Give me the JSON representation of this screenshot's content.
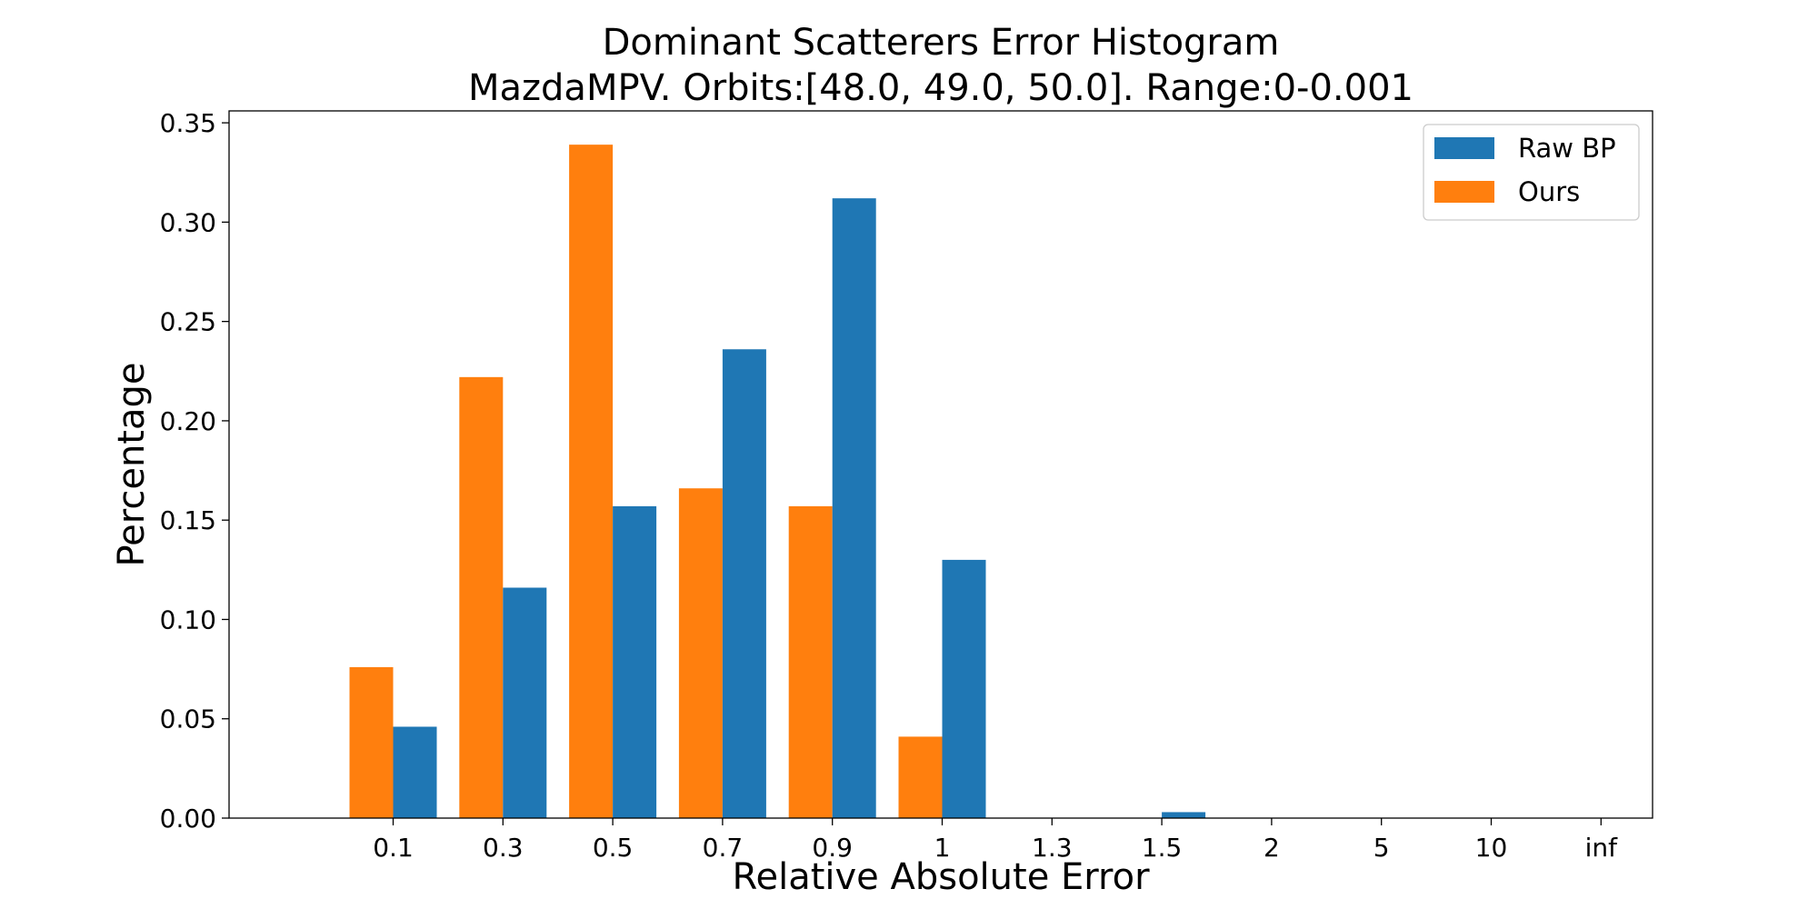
{
  "chart_data": {
    "type": "bar",
    "title": "Dominant Scatterers Error Histogram",
    "subtitle": "MazdaMPV. Orbits:[48.0, 49.0, 50.0]. Range:0-0.001",
    "xlabel": "Relative Absolute Error",
    "ylabel": "Percentage",
    "categories": [
      "0.1",
      "0.3",
      "0.5",
      "0.7",
      "0.9",
      "1",
      "1.3",
      "1.5",
      "2",
      "5",
      "10",
      "inf"
    ],
    "y_ticks": [
      "0.00",
      "0.05",
      "0.10",
      "0.15",
      "0.20",
      "0.25",
      "0.30",
      "0.35"
    ],
    "ylim": [
      0,
      0.356
    ],
    "grid": false,
    "legend_position": "top-right",
    "series": [
      {
        "name": "Raw BP",
        "color": "#1f77b4",
        "values": [
          0.046,
          0.116,
          0.157,
          0.236,
          0.312,
          0.13,
          0.0,
          0.003,
          0.0,
          0.0,
          0.0,
          0.0
        ]
      },
      {
        "name": "Ours",
        "color": "#ff7f0e",
        "values": [
          0.076,
          0.222,
          0.339,
          0.166,
          0.157,
          0.041,
          0.0,
          0.0,
          0.0,
          0.0,
          0.0,
          0.0
        ]
      }
    ]
  }
}
